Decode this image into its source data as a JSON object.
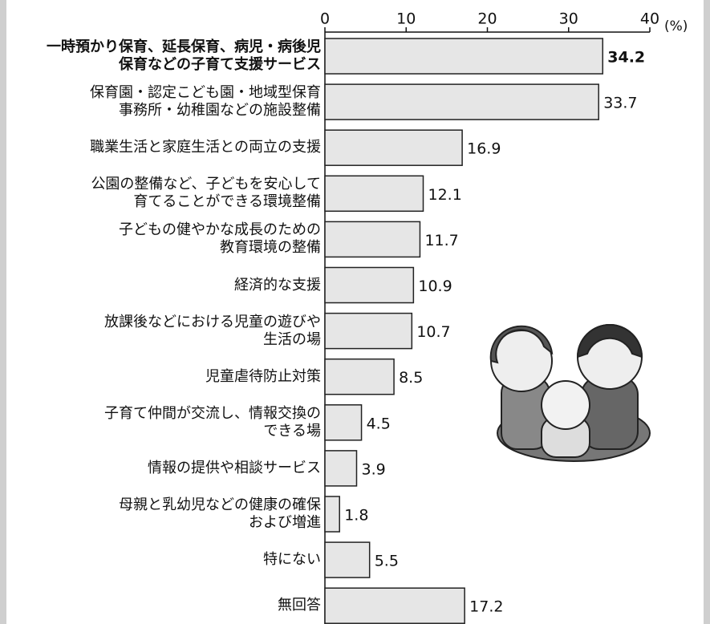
{
  "chart_data": {
    "type": "barh",
    "x_unit": "(%)",
    "categories": [
      "一時預かり保育、延長保育、病児・病後児\n保育などの子育て支援サービス",
      "保育園・認定こども園・地域型保育\n事務所・幼稚園などの施設整備",
      "職業生活と家庭生活との両立の支援",
      "公園の整備など、子どもを安心して\n育てることができる環境整備",
      "子どもの健やかな成長のための\n教育環境の整備",
      "経済的な支援",
      "放課後などにおける児童の遊びや\n生活の場",
      "児童虐待防止対策",
      "子育て仲間が交流し、情報交換の\nできる場",
      "情報の提供や相談サービス",
      "母親と乳幼児などの健康の確保\nおよび増進",
      "特にない",
      "無回答"
    ],
    "values": [
      34.2,
      33.7,
      16.9,
      12.1,
      11.7,
      10.9,
      10.7,
      8.5,
      4.5,
      3.9,
      1.8,
      5.5,
      17.2
    ],
    "xlim": [
      0,
      40
    ],
    "xticks": [
      0,
      10,
      20,
      30,
      40
    ],
    "color": "#e6e6e6",
    "highlight_index": 0
  }
}
